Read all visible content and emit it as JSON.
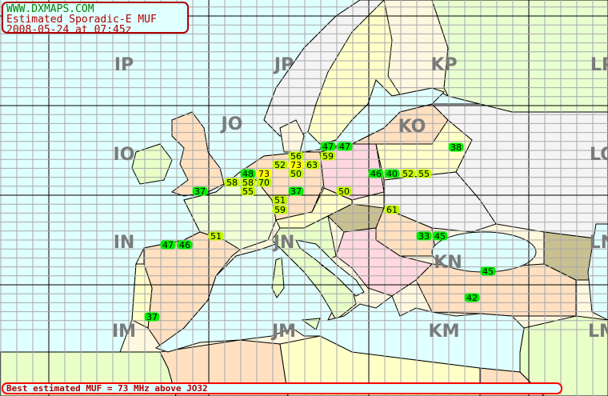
{
  "header": {
    "site": "WWW.DXMAPS.COM",
    "title": "Estimated Sporadic-E MUF",
    "timestamp": "2008-05-24 at 07:45z"
  },
  "footer": {
    "summary": "Best estimated MUF = 73 MHz above JO32"
  },
  "grid_labels": [
    "IP",
    "JP",
    "KP",
    "LP",
    "IO",
    "JO",
    "KO",
    "LO",
    "IN",
    "JN",
    "KN",
    "LN",
    "IM",
    "JM",
    "KM",
    "LM"
  ],
  "muf_colors": {
    "below_50": "#00ee00",
    "50_to_70": "#c0f800",
    "above_70": "#ffff00"
  },
  "map_colors": {
    "sea": "#e0ffff",
    "grid_minor": "#a8a8a8",
    "grid_major": "#000000",
    "grid_label": "#7a7a7a"
  },
  "muf_values": [
    47,
    47,
    56,
    59,
    52,
    73,
    63,
    48,
    73,
    50,
    58,
    58,
    70,
    55,
    37,
    37,
    50,
    51,
    59,
    38,
    46,
    40,
    52,
    55,
    61,
    51,
    47,
    46,
    33,
    45,
    45,
    42,
    37
  ]
}
